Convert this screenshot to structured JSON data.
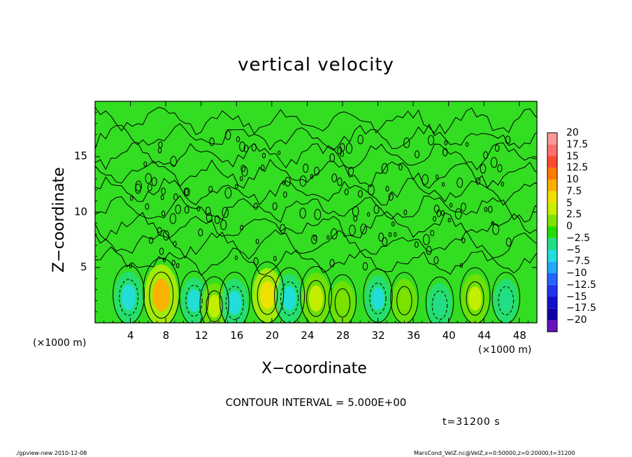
{
  "title": "vertical velocity",
  "footer": {
    "left": "./gpview-new  2010-12-08",
    "right": "MarsCond_VelZ.nc@VelZ,x=0:50000,z=0:20000,t=31200"
  },
  "contour_interval": "CONTOUR INTERVAL = 5.000E+00",
  "time_label": "t=31200 s",
  "x_unit_left": "(×1000 m)",
  "x_unit_right": "(×1000 m)",
  "colors": {
    "background_field": "#33dd22",
    "contour_line": "#000000"
  },
  "chart_data": {
    "type": "heatmap",
    "title": "vertical velocity",
    "xlabel": "X−coordinate",
    "ylabel": "Z−coordinate",
    "xlim": [
      0,
      50
    ],
    "ylim": [
      0,
      20
    ],
    "x_ticks": [
      "4",
      "8",
      "12",
      "16",
      "20",
      "24",
      "28",
      "32",
      "36",
      "40",
      "44",
      "48"
    ],
    "y_ticks": [
      "5",
      "10",
      "15"
    ],
    "colorbar": {
      "levels": [
        "20",
        "17.5",
        "15",
        "12.5",
        "10",
        "7.5",
        "5",
        "2.5",
        "0",
        "−2.5",
        "−5",
        "−7.5",
        "−10",
        "−12.5",
        "−15",
        "−17.5",
        "−20"
      ],
      "colors": [
        "#ff9999",
        "#ff6f6f",
        "#ff4a2e",
        "#ff7a00",
        "#ffb000",
        "#f0e000",
        "#c8ee00",
        "#7fe200",
        "#22dd00",
        "#22dd88",
        "#22dddd",
        "#22aaff",
        "#2266ff",
        "#2233ee",
        "#1111cc",
        "#1100aa",
        "#6611bb"
      ]
    },
    "features": [
      {
        "x": 3.8,
        "z": 2.3,
        "value": -6.0
      },
      {
        "x": 7.5,
        "z": 2.5,
        "value": 10.0
      },
      {
        "x": 11.2,
        "z": 2.0,
        "value": -4.0
      },
      {
        "x": 13.5,
        "z": 1.5,
        "value": 4.0
      },
      {
        "x": 15.8,
        "z": 1.8,
        "value": -5.0
      },
      {
        "x": 19.5,
        "z": 2.5,
        "value": 7.0
      },
      {
        "x": 22.0,
        "z": 2.2,
        "value": -5.0
      },
      {
        "x": 25.0,
        "z": 2.2,
        "value": 6.0
      },
      {
        "x": 28.0,
        "z": 1.8,
        "value": 3.0
      },
      {
        "x": 32.0,
        "z": 2.2,
        "value": -4.0
      },
      {
        "x": 35.0,
        "z": 2.0,
        "value": 3.0
      },
      {
        "x": 39.0,
        "z": 1.6,
        "value": -3.0
      },
      {
        "x": 43.0,
        "z": 2.2,
        "value": 5.0
      },
      {
        "x": 46.5,
        "z": 2.0,
        "value": -3.0
      }
    ]
  }
}
